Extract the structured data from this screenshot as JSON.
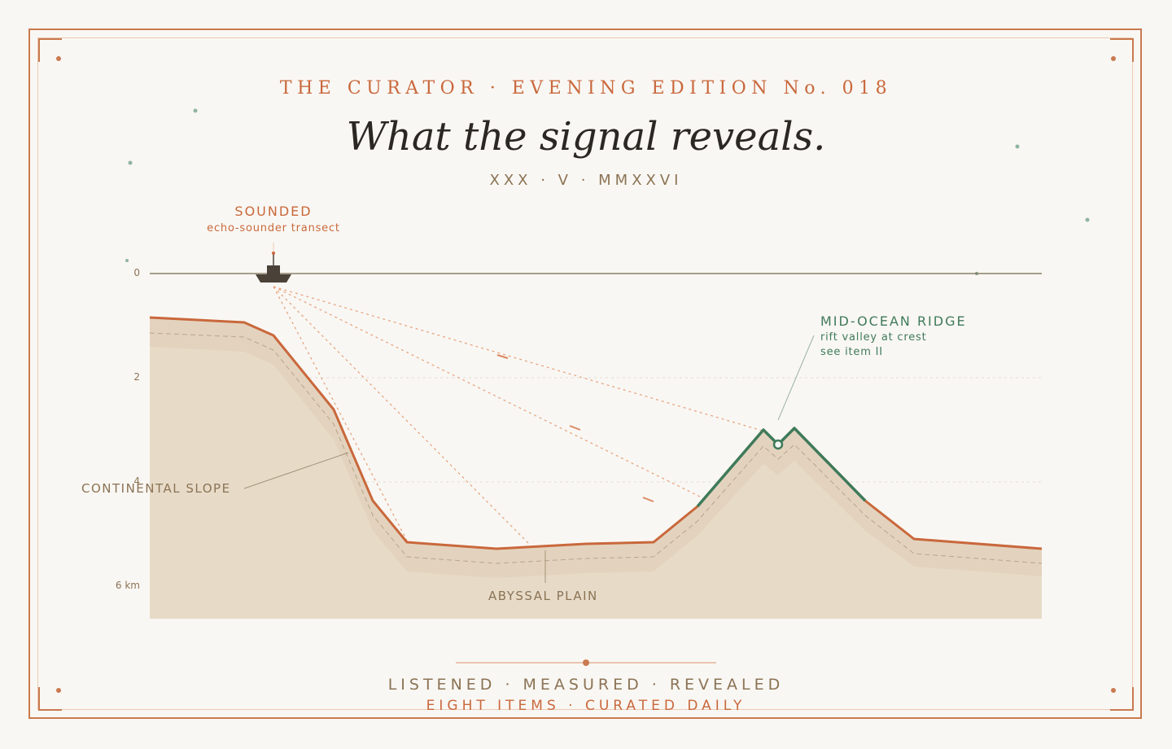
{
  "header": {
    "kicker": "THE CURATOR · EVENING EDITION No. 018",
    "headline": "What the signal reveals.",
    "dateline": "XXX · V · MMXXVI"
  },
  "labels": {
    "sounded_title": "SOUNDED",
    "sounded_sub": "echo-sounder transect",
    "ridge_title": "MID-OCEAN RIDGE",
    "ridge_sub1": "rift valley at crest",
    "ridge_sub2": "see item II",
    "slope": "CONTINENTAL SLOPE",
    "abyss": "ABYSSAL PLAIN"
  },
  "depth_axis": {
    "unit": "km",
    "ticks": [
      {
        "value": 0,
        "label": "0"
      },
      {
        "value": 2,
        "label": "2"
      },
      {
        "value": 4,
        "label": "4"
      },
      {
        "value": 6,
        "label": "6 km"
      }
    ]
  },
  "footer": {
    "line1": "LISTENED · MEASURED · REVEALED",
    "line2": "EIGHT ITEMS · CURATED DAILY"
  },
  "colors": {
    "accent": "#c9683c",
    "ridge": "#3f7a5a",
    "ink": "#2b2722",
    "muted": "#8b7355",
    "seabed_fill": "#e3d3be",
    "background": "#f9f7f3"
  }
}
